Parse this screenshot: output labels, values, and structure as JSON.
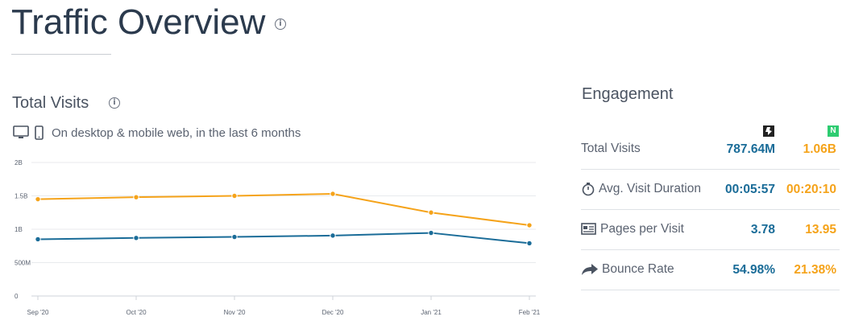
{
  "header": {
    "title": "Traffic Overview"
  },
  "visits": {
    "title": "Total Visits",
    "subtitle": "On desktop & mobile web, in the last 6 months"
  },
  "chart_data": {
    "type": "line",
    "categories": [
      "Sep '20",
      "Oct '20",
      "Nov '20",
      "Dec '20",
      "Jan '21",
      "Feb '21"
    ],
    "ylim": [
      0,
      2000000000
    ],
    "y_ticks": [
      "0",
      "500M",
      "1B",
      "1.5B",
      "2B"
    ],
    "grid": true,
    "series": [
      {
        "values": [
          1450000000,
          1480000000,
          1500000000,
          1530000000,
          1250000000,
          1060000000
        ],
        "color": "#f5a31a"
      },
      {
        "values": [
          850000000,
          870000000,
          885000000,
          905000000,
          945000000,
          790000000
        ],
        "color": "#1a6c98"
      }
    ]
  },
  "engagement": {
    "title": "Engagement",
    "site1_icon": "site-logo-icon",
    "site2_icon_letter": "N",
    "rows": [
      {
        "icon": "",
        "label": "Total Visits",
        "v1": "787.64M",
        "v2": "1.06B"
      },
      {
        "icon": "stopwatch-icon",
        "label": "Avg. Visit Duration",
        "v1": "00:05:57",
        "v2": "00:20:10"
      },
      {
        "icon": "pages-icon",
        "label": "Pages per Visit",
        "v1": "3.78",
        "v2": "13.95"
      },
      {
        "icon": "share-arrow-icon",
        "label": "Bounce Rate",
        "v1": "54.98%",
        "v2": "21.38%"
      }
    ]
  },
  "colors": {
    "site1": "#1a6c98",
    "site2": "#f5a31a",
    "site2_badge": "#2ecc71"
  }
}
